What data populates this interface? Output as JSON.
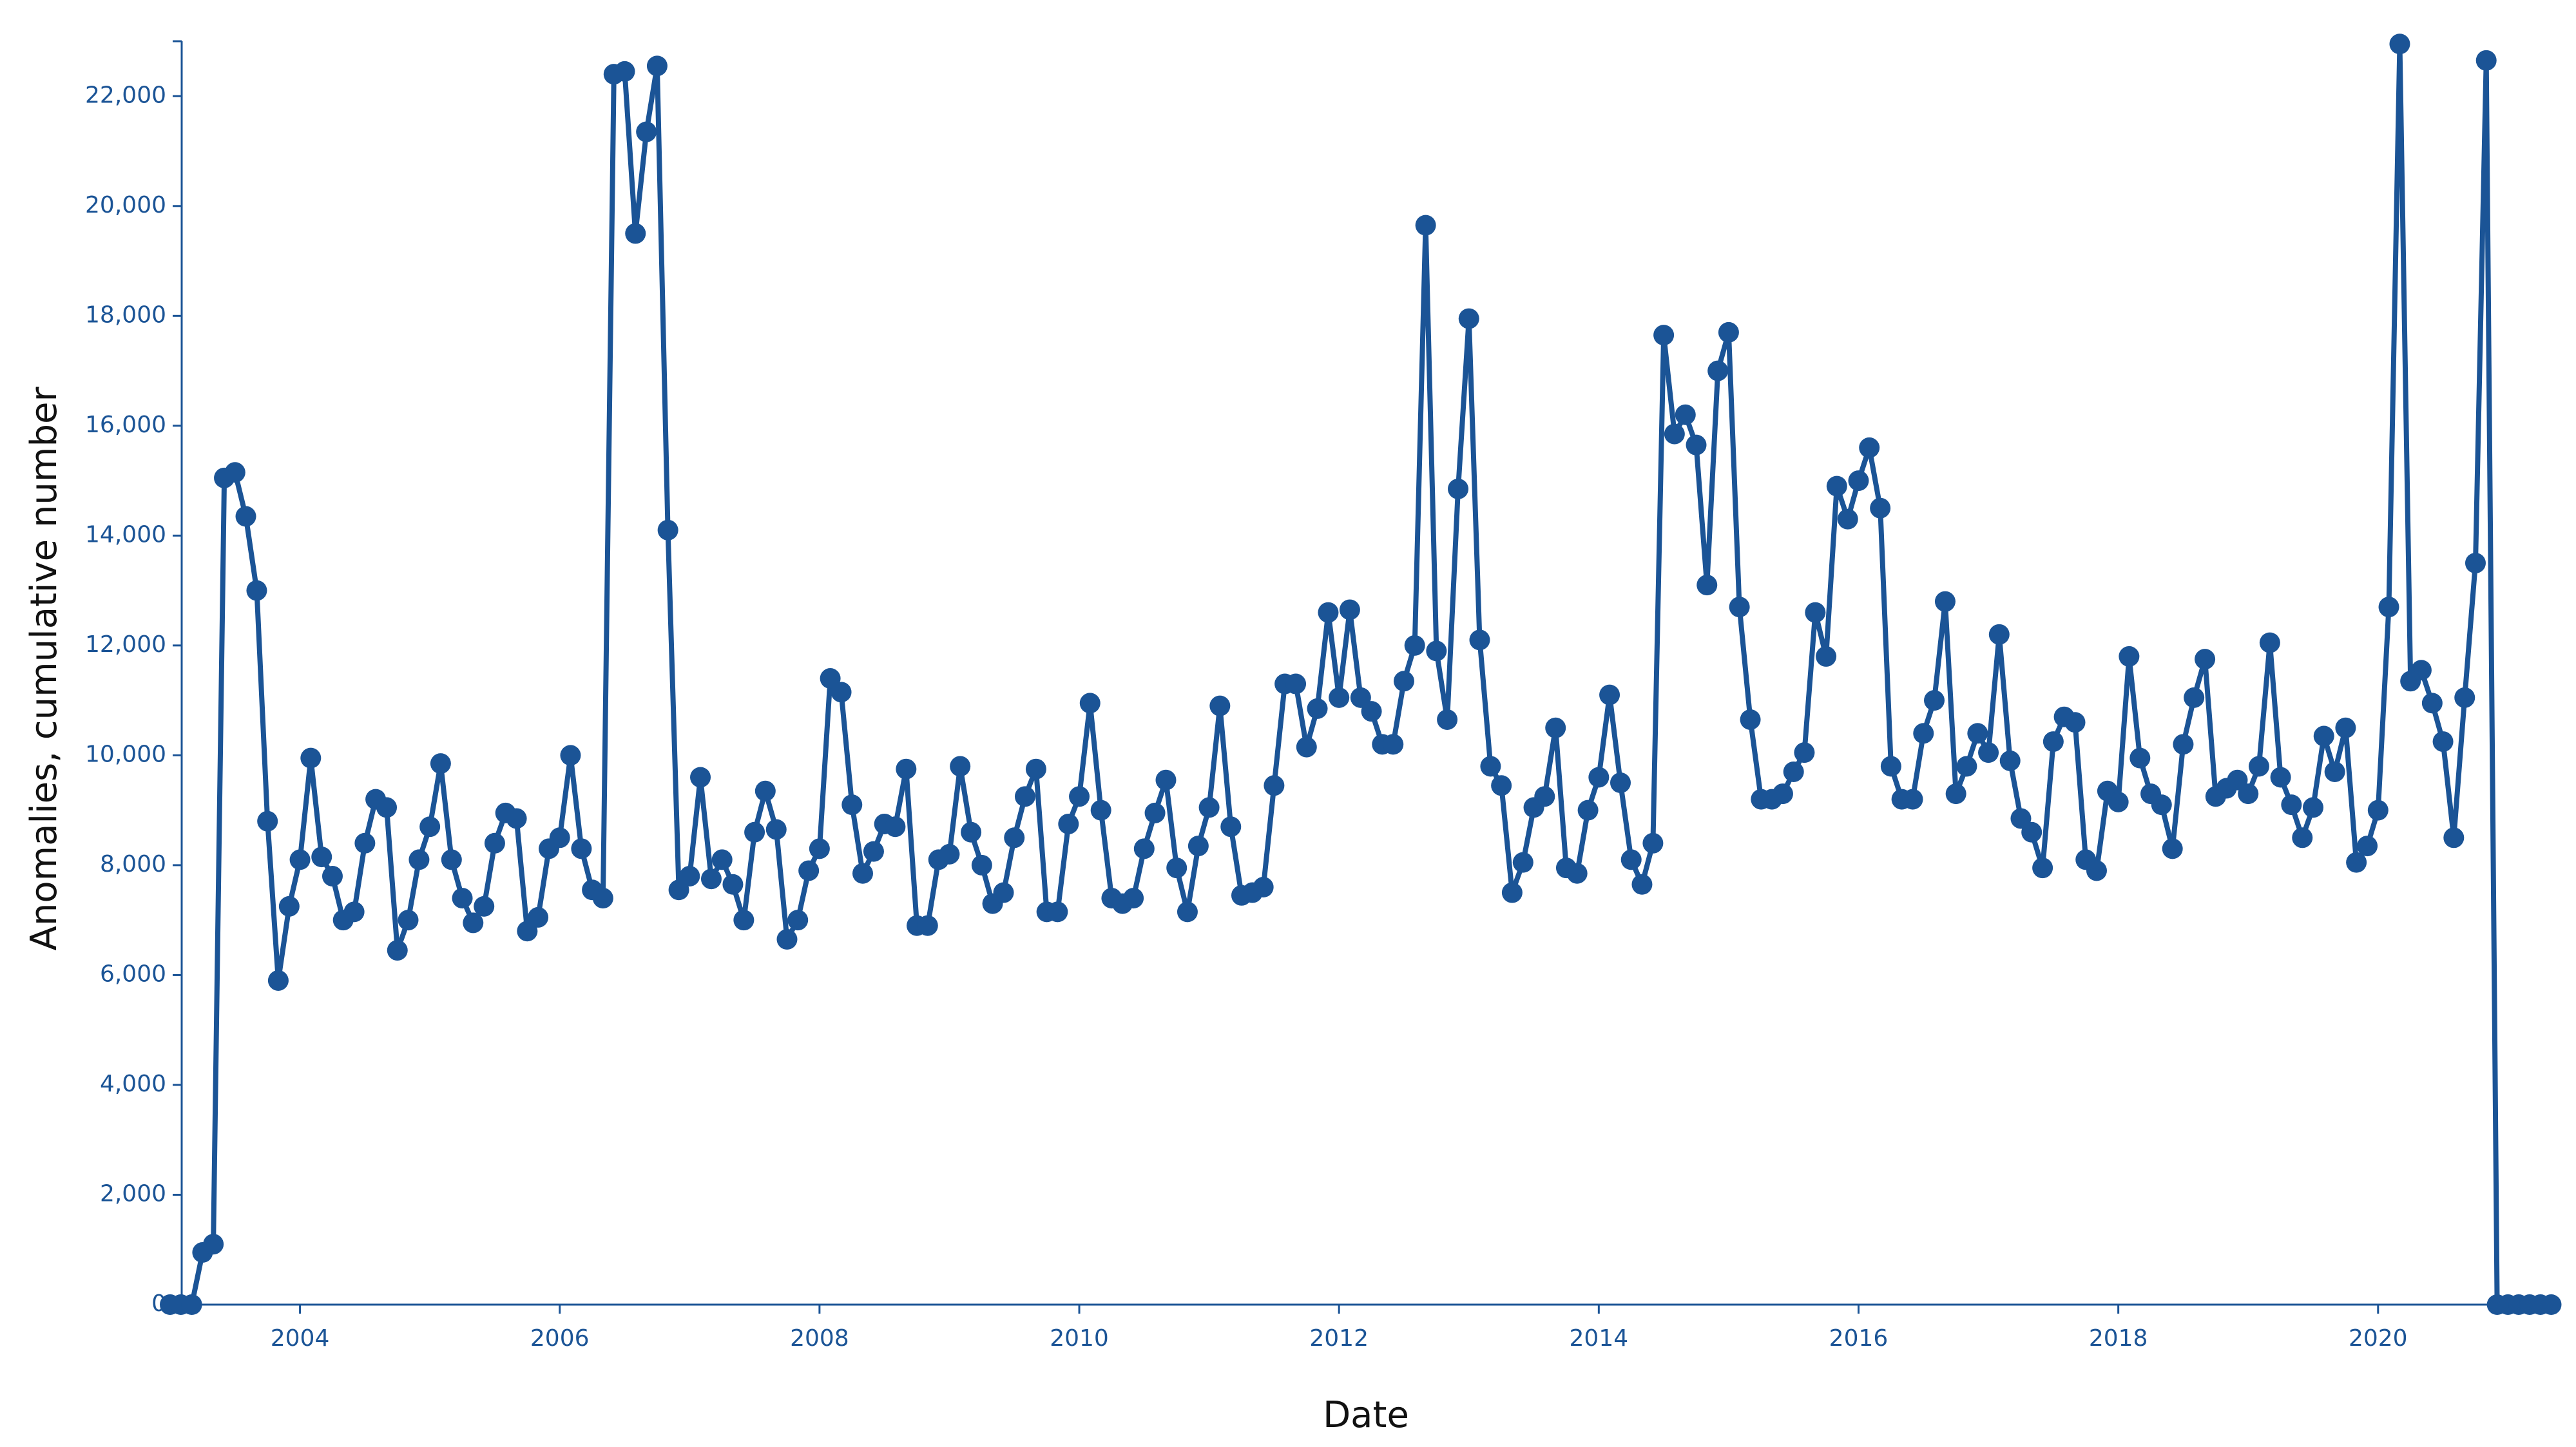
{
  "chart_data": {
    "type": "line",
    "x_label": "Date",
    "y_label": "Anomalies, cumulative number",
    "color": "#1b5496",
    "xlim": [
      2003,
      2021.4
    ],
    "xticks": [
      2004,
      2006,
      2008,
      2010,
      2012,
      2014,
      2016,
      2018,
      2020
    ],
    "ylim": [
      0,
      23000
    ],
    "yticks": [
      0,
      {
        "value": 2000,
        "label": "2,000"
      },
      {
        "value": 4000,
        "label": "4,000"
      },
      {
        "value": 6000,
        "label": "6,000"
      },
      {
        "value": 8000,
        "label": "8,000"
      },
      {
        "value": 10000,
        "label": "10,000"
      },
      {
        "value": 12000,
        "label": "12,000"
      },
      {
        "value": 14000,
        "label": "14,000"
      },
      {
        "value": 16000,
        "label": "16,000"
      },
      {
        "value": 18000,
        "label": "18,000"
      },
      {
        "value": 20000,
        "label": "20,000"
      },
      {
        "value": 22000,
        "label": "22,000"
      }
    ],
    "x": [
      2003,
      2003.083,
      2003.167,
      2003.25,
      2003.333,
      2003.417,
      2003.5,
      2003.583,
      2003.667,
      2003.75,
      2003.833,
      2003.917,
      2004,
      2004.083,
      2004.167,
      2004.25,
      2004.333,
      2004.417,
      2004.5,
      2004.583,
      2004.667,
      2004.75,
      2004.833,
      2004.917,
      2005,
      2005.083,
      2005.167,
      2005.25,
      2005.333,
      2005.417,
      2005.5,
      2005.583,
      2005.667,
      2005.75,
      2005.833,
      2005.917,
      2006,
      2006.083,
      2006.167,
      2006.25,
      2006.333,
      2006.417,
      2006.5,
      2006.583,
      2006.667,
      2006.75,
      2006.833,
      2006.917,
      2007,
      2007.083,
      2007.167,
      2007.25,
      2007.333,
      2007.417,
      2007.5,
      2007.583,
      2007.667,
      2007.75,
      2007.833,
      2007.917,
      2008,
      2008.083,
      2008.167,
      2008.25,
      2008.333,
      2008.417,
      2008.5,
      2008.583,
      2008.667,
      2008.75,
      2008.833,
      2008.917,
      2009,
      2009.083,
      2009.167,
      2009.25,
      2009.333,
      2009.417,
      2009.5,
      2009.583,
      2009.667,
      2009.75,
      2009.833,
      2009.917,
      2010,
      2010.083,
      2010.167,
      2010.25,
      2010.333,
      2010.417,
      2010.5,
      2010.583,
      2010.667,
      2010.75,
      2010.833,
      2010.917,
      2011,
      2011.083,
      2011.167,
      2011.25,
      2011.333,
      2011.417,
      2011.5,
      2011.583,
      2011.667,
      2011.75,
      2011.833,
      2011.917,
      2012,
      2012.083,
      2012.167,
      2012.25,
      2012.333,
      2012.417,
      2012.5,
      2012.583,
      2012.667,
      2012.75,
      2012.833,
      2012.917,
      2013,
      2013.083,
      2013.167,
      2013.25,
      2013.333,
      2013.417,
      2013.5,
      2013.583,
      2013.667,
      2013.75,
      2013.833,
      2013.917,
      2014,
      2014.083,
      2014.167,
      2014.25,
      2014.333,
      2014.417,
      2014.5,
      2014.583,
      2014.667,
      2014.75,
      2014.833,
      2014.917,
      2015,
      2015.083,
      2015.167,
      2015.25,
      2015.333,
      2015.417,
      2015.5,
      2015.583,
      2015.667,
      2015.75,
      2015.833,
      2015.917,
      2016,
      2016.083,
      2016.167,
      2016.25,
      2016.333,
      2016.417,
      2016.5,
      2016.583,
      2016.667,
      2016.75,
      2016.833,
      2016.917,
      2017,
      2017.083,
      2017.167,
      2017.25,
      2017.333,
      2017.417,
      2017.5,
      2017.583,
      2017.667,
      2017.75,
      2017.833,
      2017.917,
      2018,
      2018.083,
      2018.167,
      2018.25,
      2018.333,
      2018.417,
      2018.5,
      2018.583,
      2018.667,
      2018.75,
      2018.833,
      2018.917,
      2019,
      2019.083,
      2019.167,
      2019.25,
      2019.333,
      2019.417,
      2019.5,
      2019.583,
      2019.667,
      2019.75,
      2019.833,
      2019.917,
      2020,
      2020.083,
      2020.167,
      2020.25,
      2020.333,
      2020.417,
      2020.5,
      2020.583,
      2020.667,
      2020.75,
      2020.833,
      2020.917,
      2021,
      2021.083,
      2021.167,
      2021.25,
      2021.333
    ],
    "values": [
      0,
      0,
      0,
      950,
      1100,
      15050,
      15150,
      14350,
      13000,
      8800,
      5900,
      7250,
      8100,
      9950,
      8150,
      7800,
      7000,
      7150,
      8400,
      9200,
      9050,
      6450,
      7000,
      8100,
      8700,
      9850,
      8100,
      7400,
      6950,
      7250,
      8400,
      8950,
      8850,
      6800,
      7050,
      8300,
      8500,
      10000,
      8300,
      7550,
      7400,
      22400,
      22450,
      19500,
      21350,
      22550,
      14100,
      7550,
      7800,
      9600,
      7750,
      8100,
      7650,
      7000,
      8600,
      9350,
      8650,
      6650,
      7000,
      7900,
      8300,
      11400,
      11150,
      9100,
      7850,
      8250,
      8750,
      8700,
      9750,
      6900,
      6900,
      8100,
      8200,
      9800,
      8600,
      8000,
      7300,
      7500,
      8500,
      9250,
      9750,
      7150,
      7150,
      8750,
      9250,
      10950,
      9000,
      7400,
      7300,
      7400,
      8300,
      8950,
      9550,
      7950,
      7150,
      8350,
      9050,
      10900,
      8700,
      7450,
      7500,
      7600,
      9450,
      11300,
      11300,
      10150,
      10850,
      12600,
      11050,
      12650,
      11050,
      10800,
      10200,
      10200,
      11350,
      12000,
      19650,
      11900,
      10650,
      14850,
      17950,
      12100,
      9800,
      9450,
      7500,
      8050,
      9050,
      9250,
      10500,
      7950,
      7850,
      9000,
      9600,
      11100,
      9500,
      8100,
      7650,
      8400,
      17650,
      15850,
      16200,
      15650,
      13100,
      17000,
      17700,
      12700,
      10650,
      9200,
      9200,
      9300,
      9700,
      10050,
      12600,
      11800,
      14900,
      14300,
      15000,
      15600,
      14500,
      9800,
      9200,
      9200,
      10400,
      11000,
      12800,
      9300,
      9800,
      10400,
      10050,
      12200,
      9900,
      8850,
      8600,
      7950,
      10250,
      10700,
      10600,
      8100,
      7900,
      9350,
      9150,
      11800,
      9950,
      9300,
      9100,
      8300,
      10200,
      11050,
      11750,
      9250,
      9400,
      9550,
      9300,
      9800,
      12050,
      9600,
      9100,
      8500,
      9050,
      10350,
      9700,
      10500,
      8050,
      8350,
      9000,
      12700,
      22950,
      11350,
      11550,
      10950,
      10250,
      8500,
      11050,
      13500,
      22650,
      0,
      0,
      0,
      0,
      0,
      0
    ]
  }
}
